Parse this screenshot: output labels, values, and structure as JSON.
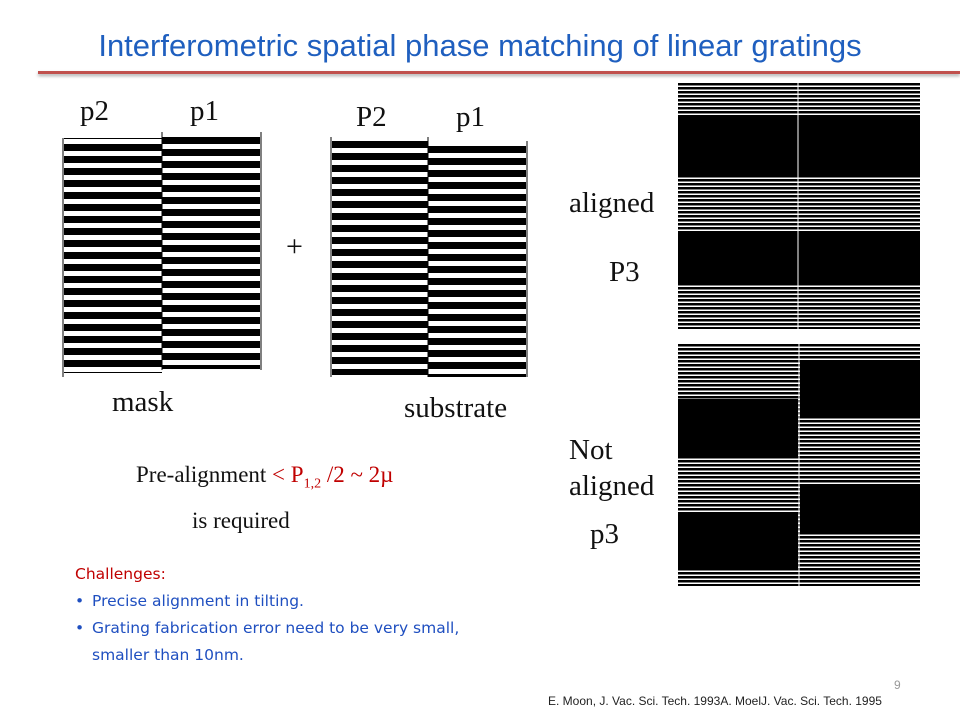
{
  "slide": {
    "title": "Interferometric spatial phase matching of linear gratings",
    "mask_panel": {
      "left_label": "p2",
      "right_label": "p1",
      "caption": "mask"
    },
    "plus_sign": "+",
    "substrate_panel": {
      "left_label": "P2",
      "right_label": "p1",
      "caption": "substrate"
    },
    "prealign": {
      "lead": "Pre-alignment",
      "condition": "< P",
      "subscript": "1,2",
      "condition_tail": " /2 ~ 2µ",
      "line2": "is required"
    },
    "aligned": {
      "label": "aligned",
      "period": "P3"
    },
    "not_aligned": {
      "label_line1": "Not",
      "label_line2": "aligned",
      "period": "p3"
    },
    "challenges": {
      "heading": "Challenges:",
      "items": [
        "Precise alignment in tilting.",
        "Grating fabrication error need to be very small, smaller than 10nm."
      ]
    },
    "footnote": "E. Moon, J. Vac. Sci. Tech. 1993A. MoelJ. Vac. Sci. Tech. 1995",
    "slide_number": "9"
  },
  "colors": {
    "title": "#1f5fbf",
    "rule": "#c0504d",
    "accent_red": "#c00000",
    "bullet_blue": "#1f4fc0"
  }
}
